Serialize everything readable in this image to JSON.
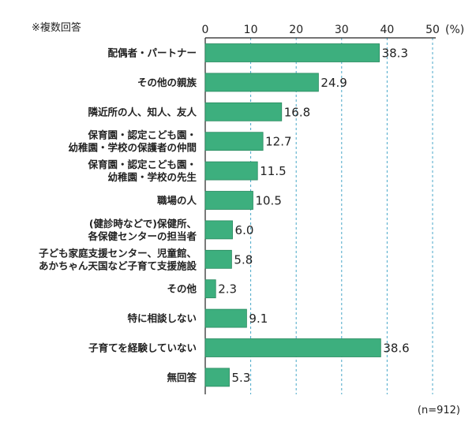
{
  "note": "※複数回答",
  "sample_size": "(n=912)",
  "colors": {
    "bar": "#3daf7e",
    "bar_stroke": "#2a8a60",
    "grid": "#48a7c8",
    "axis": "#222222"
  },
  "chart_data": {
    "type": "bar",
    "orientation": "horizontal",
    "categories": [
      [
        "配偶者・パートナー"
      ],
      [
        "その他の親族"
      ],
      [
        "隣近所の人、知人、友人"
      ],
      [
        "保育園・認定こども園・",
        "幼稚園・学校の保護者の仲間"
      ],
      [
        "保育園・認定こども園・",
        "幼稚園・学校の先生"
      ],
      [
        "職場の人"
      ],
      [
        "(健診時などで)保健所、",
        "各保健センターの担当者"
      ],
      [
        "子ども家庭支援センター、児童館、",
        "あかちゃん天国など子育て支援施設"
      ],
      [
        "その他"
      ],
      [
        "特に相談しない"
      ],
      [
        "子育てを経験していない"
      ],
      [
        "無回答"
      ]
    ],
    "values": [
      38.3,
      24.9,
      16.8,
      12.7,
      11.5,
      10.5,
      6.0,
      5.8,
      2.3,
      9.1,
      38.6,
      5.3
    ],
    "value_labels": [
      "38.3",
      "24.9",
      "16.8",
      "12.7",
      "11.5",
      "10.5",
      "6.0",
      "5.8",
      "2.3",
      "9.1",
      "38.6",
      "5.3"
    ],
    "xlim": [
      0,
      50
    ],
    "ticks": [
      0,
      10,
      20,
      30,
      40,
      50
    ],
    "tick_labels": [
      "0",
      "10",
      "20",
      "30",
      "40",
      "50"
    ],
    "unit_label": "(%)",
    "gridlines": "dashed vertical",
    "title": "",
    "xlabel": "",
    "ylabel": ""
  }
}
